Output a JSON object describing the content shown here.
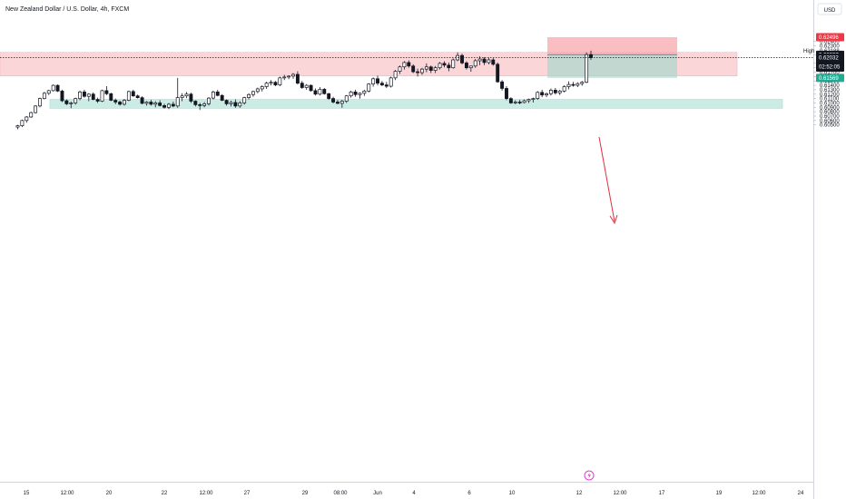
{
  "header": {
    "title": "New Zealand Dollar / U.S. Dollar, 4h, FXCM"
  },
  "price_scale": {
    "currency": "USD",
    "ticks": [
      "0.62400",
      "0.62300",
      "0.62100",
      "0.61900",
      "0.61800",
      "0.61700",
      "0.61600",
      "0.61500",
      "0.61400",
      "0.61300",
      "0.61200",
      "0.61100",
      "0.61000",
      "0.60900",
      "0.60800",
      "0.60700",
      "0.60600",
      "0.60500"
    ],
    "badges": {
      "tp": {
        "value": "0.62496",
        "color": "#f23645"
      },
      "high_label": "High",
      "high": "0.62188",
      "entry": "0.62097",
      "last": "0.62032",
      "countdown": "02:52:05",
      "sl": "0.61569",
      "sl_color": "#22ab94"
    }
  },
  "time_axis": {
    "labels": [
      "15",
      "12:00",
      "20",
      "22",
      "12:00",
      "27",
      "29",
      "08:00",
      "Jun",
      "4",
      "6",
      "10",
      "12",
      "12:00",
      "17",
      "19",
      "12:00",
      "24"
    ]
  },
  "zones": [
    {
      "name": "resistance",
      "top": 0.6215,
      "bottom": 0.61615,
      "color": "#f7b4b9"
    },
    {
      "name": "support",
      "top": 0.6108,
      "bottom": 0.60878,
      "color": "#9fdcd0"
    }
  ],
  "position": {
    "stop_top": 0.62496,
    "entry": 0.62097,
    "target": 0.61569,
    "loss_color": "#f7a7ae",
    "profit_color": "#9fd7cb"
  },
  "colors": {
    "candle": "#131722",
    "arrow": "#e0303f",
    "last_price_line": "#131722"
  },
  "chart_data": {
    "type": "candlestick",
    "title": "New Zealand Dollar / U.S. Dollar, 4h, FXCM",
    "ylim": [
      0.60455,
      0.6256
    ],
    "x_labels": [
      "15",
      "12:00",
      "20",
      "22",
      "12:00",
      "27",
      "29",
      "08:00",
      "Jun",
      "4",
      "6",
      "10",
      "12",
      "12:00",
      "17",
      "19",
      "12:00",
      "24"
    ],
    "ohlc": [
      [
        0.6045,
        0.605,
        0.604,
        0.6048
      ],
      [
        0.6048,
        0.6062,
        0.6045,
        0.606
      ],
      [
        0.606,
        0.607,
        0.6055,
        0.6068
      ],
      [
        0.6068,
        0.608,
        0.6066,
        0.6078
      ],
      [
        0.6078,
        0.6095,
        0.6076,
        0.6093
      ],
      [
        0.6093,
        0.6112,
        0.609,
        0.611
      ],
      [
        0.611,
        0.6125,
        0.6108,
        0.6122
      ],
      [
        0.6122,
        0.613,
        0.6118,
        0.6128
      ],
      [
        0.6128,
        0.6142,
        0.6126,
        0.614
      ],
      [
        0.614,
        0.6142,
        0.6125,
        0.6127
      ],
      [
        0.6127,
        0.613,
        0.6102,
        0.6105
      ],
      [
        0.6105,
        0.6108,
        0.6095,
        0.6098
      ],
      [
        0.6098,
        0.6103,
        0.6088,
        0.61
      ],
      [
        0.61,
        0.6112,
        0.6096,
        0.611
      ],
      [
        0.611,
        0.6128,
        0.6106,
        0.6125
      ],
      [
        0.6125,
        0.613,
        0.6112,
        0.6115
      ],
      [
        0.6115,
        0.6122,
        0.6104,
        0.612
      ],
      [
        0.612,
        0.6124,
        0.6106,
        0.6108
      ],
      [
        0.6108,
        0.6112,
        0.61,
        0.6104
      ],
      [
        0.6104,
        0.613,
        0.6102,
        0.6128
      ],
      [
        0.6128,
        0.6138,
        0.6118,
        0.6121
      ],
      [
        0.6121,
        0.6123,
        0.6104,
        0.6106
      ],
      [
        0.6106,
        0.611,
        0.6097,
        0.6102
      ],
      [
        0.6102,
        0.6105,
        0.6094,
        0.6097
      ],
      [
        0.6097,
        0.6109,
        0.6094,
        0.6106
      ],
      [
        0.6106,
        0.6128,
        0.6104,
        0.6126
      ],
      [
        0.6126,
        0.613,
        0.6114,
        0.6116
      ],
      [
        0.6116,
        0.6119,
        0.611,
        0.6112
      ],
      [
        0.6112,
        0.6115,
        0.6097,
        0.6099
      ],
      [
        0.6099,
        0.6104,
        0.6094,
        0.6102
      ],
      [
        0.6102,
        0.6107,
        0.6094,
        0.6097
      ],
      [
        0.6097,
        0.6104,
        0.609,
        0.61
      ],
      [
        0.61,
        0.6106,
        0.6092,
        0.6094
      ],
      [
        0.6094,
        0.6098,
        0.6087,
        0.609
      ],
      [
        0.609,
        0.61,
        0.6086,
        0.6097
      ],
      [
        0.6097,
        0.6103,
        0.609,
        0.6093
      ],
      [
        0.6093,
        0.6157,
        0.6089,
        0.6112
      ],
      [
        0.6112,
        0.6122,
        0.6104,
        0.6116
      ],
      [
        0.6116,
        0.6125,
        0.6111,
        0.612
      ],
      [
        0.612,
        0.6123,
        0.61,
        0.6104
      ],
      [
        0.6104,
        0.6106,
        0.6092,
        0.6096
      ],
      [
        0.6096,
        0.61,
        0.6084,
        0.6094
      ],
      [
        0.6094,
        0.6102,
        0.609,
        0.6098
      ],
      [
        0.6098,
        0.6113,
        0.6094,
        0.6111
      ],
      [
        0.6111,
        0.6128,
        0.6108,
        0.6125
      ],
      [
        0.6125,
        0.613,
        0.6115,
        0.6117
      ],
      [
        0.6117,
        0.612,
        0.6104,
        0.6106
      ],
      [
        0.6106,
        0.6108,
        0.6094,
        0.6098
      ],
      [
        0.6098,
        0.6105,
        0.6092,
        0.6101
      ],
      [
        0.6101,
        0.6108,
        0.6089,
        0.6093
      ],
      [
        0.6093,
        0.6104,
        0.6089,
        0.61
      ],
      [
        0.61,
        0.6114,
        0.6096,
        0.6112
      ],
      [
        0.6112,
        0.6122,
        0.6108,
        0.6119
      ],
      [
        0.6119,
        0.6128,
        0.6114,
        0.6126
      ],
      [
        0.6126,
        0.6135,
        0.6122,
        0.6132
      ],
      [
        0.6132,
        0.614,
        0.6126,
        0.6137
      ],
      [
        0.6137,
        0.6148,
        0.6132,
        0.6145
      ],
      [
        0.6145,
        0.6152,
        0.614,
        0.6147
      ],
      [
        0.6147,
        0.615,
        0.6138,
        0.6141
      ],
      [
        0.6141,
        0.616,
        0.6138,
        0.6157
      ],
      [
        0.6157,
        0.6164,
        0.6152,
        0.6159
      ],
      [
        0.6159,
        0.6163,
        0.6154,
        0.6161
      ],
      [
        0.6161,
        0.6168,
        0.6155,
        0.6165
      ],
      [
        0.6165,
        0.6172,
        0.6142,
        0.6145
      ],
      [
        0.6145,
        0.615,
        0.6132,
        0.6135
      ],
      [
        0.6135,
        0.6143,
        0.613,
        0.614
      ],
      [
        0.614,
        0.6142,
        0.6126,
        0.6128
      ],
      [
        0.6128,
        0.6133,
        0.6117,
        0.612
      ],
      [
        0.612,
        0.6136,
        0.6117,
        0.6131
      ],
      [
        0.6131,
        0.6134,
        0.6119,
        0.6121
      ],
      [
        0.6121,
        0.6123,
        0.6107,
        0.611
      ],
      [
        0.611,
        0.6114,
        0.6099,
        0.6102
      ],
      [
        0.6102,
        0.6107,
        0.6097,
        0.6099
      ],
      [
        0.6099,
        0.6107,
        0.6089,
        0.6104
      ],
      [
        0.6104,
        0.6118,
        0.61,
        0.6116
      ],
      [
        0.6116,
        0.6128,
        0.6112,
        0.6125
      ],
      [
        0.6125,
        0.613,
        0.6114,
        0.6119
      ],
      [
        0.6119,
        0.6124,
        0.611,
        0.6122
      ],
      [
        0.6122,
        0.613,
        0.6116,
        0.6127
      ],
      [
        0.6127,
        0.6145,
        0.6124,
        0.6143
      ],
      [
        0.6143,
        0.6158,
        0.6137,
        0.6155
      ],
      [
        0.6155,
        0.6162,
        0.614,
        0.6145
      ],
      [
        0.6145,
        0.615,
        0.6138,
        0.6141
      ],
      [
        0.6141,
        0.6148,
        0.6134,
        0.6138
      ],
      [
        0.6138,
        0.616,
        0.6135,
        0.6157
      ],
      [
        0.6157,
        0.6175,
        0.6152,
        0.6172
      ],
      [
        0.6172,
        0.6185,
        0.6166,
        0.6182
      ],
      [
        0.6182,
        0.6195,
        0.6176,
        0.6192
      ],
      [
        0.6192,
        0.6197,
        0.618,
        0.6184
      ],
      [
        0.6184,
        0.6188,
        0.6168,
        0.6171
      ],
      [
        0.6171,
        0.6178,
        0.616,
        0.6169
      ],
      [
        0.6169,
        0.618,
        0.6164,
        0.6177
      ],
      [
        0.6177,
        0.619,
        0.617,
        0.6182
      ],
      [
        0.6182,
        0.6185,
        0.6168,
        0.6174
      ],
      [
        0.6174,
        0.6184,
        0.6168,
        0.618
      ],
      [
        0.618,
        0.6193,
        0.6176,
        0.619
      ],
      [
        0.619,
        0.6195,
        0.6181,
        0.6186
      ],
      [
        0.6186,
        0.6192,
        0.6172,
        0.618
      ],
      [
        0.618,
        0.6201,
        0.6178,
        0.6198
      ],
      [
        0.6198,
        0.6215,
        0.6195,
        0.6208
      ],
      [
        0.6208,
        0.6212,
        0.6188,
        0.6191
      ],
      [
        0.6191,
        0.6195,
        0.6176,
        0.618
      ],
      [
        0.618,
        0.6184,
        0.6171,
        0.6184
      ],
      [
        0.6184,
        0.62,
        0.618,
        0.6196
      ],
      [
        0.6196,
        0.6206,
        0.6186,
        0.62
      ],
      [
        0.62,
        0.6204,
        0.6186,
        0.6192
      ],
      [
        0.6192,
        0.6203,
        0.6188,
        0.6198
      ],
      [
        0.6198,
        0.6202,
        0.6185,
        0.6188
      ],
      [
        0.6188,
        0.6192,
        0.6146,
        0.6148
      ],
      [
        0.6148,
        0.6152,
        0.6128,
        0.6133
      ],
      [
        0.6133,
        0.6138,
        0.6106,
        0.611
      ],
      [
        0.611,
        0.6113,
        0.6098,
        0.61
      ],
      [
        0.61,
        0.6106,
        0.6097,
        0.6102
      ],
      [
        0.6102,
        0.6107,
        0.6097,
        0.6101
      ],
      [
        0.6101,
        0.6108,
        0.6099,
        0.6105
      ],
      [
        0.6105,
        0.611,
        0.61,
        0.6108
      ],
      [
        0.6108,
        0.6112,
        0.6101,
        0.611
      ],
      [
        0.611,
        0.6127,
        0.6107,
        0.6124
      ],
      [
        0.6124,
        0.613,
        0.6113,
        0.6118
      ],
      [
        0.6118,
        0.6124,
        0.6113,
        0.6121
      ],
      [
        0.6121,
        0.6133,
        0.6117,
        0.6129
      ],
      [
        0.6129,
        0.6134,
        0.6119,
        0.6123
      ],
      [
        0.6123,
        0.613,
        0.6118,
        0.6127
      ],
      [
        0.6127,
        0.614,
        0.6124,
        0.6137
      ],
      [
        0.6137,
        0.6149,
        0.6131,
        0.6142
      ],
      [
        0.6142,
        0.6148,
        0.6137,
        0.614
      ],
      [
        0.614,
        0.6147,
        0.6136,
        0.6144
      ],
      [
        0.6144,
        0.615,
        0.6139,
        0.6147
      ],
      [
        0.6147,
        0.6215,
        0.6145,
        0.621
      ],
      [
        0.621,
        0.6219,
        0.6198,
        0.6203
      ]
    ]
  }
}
